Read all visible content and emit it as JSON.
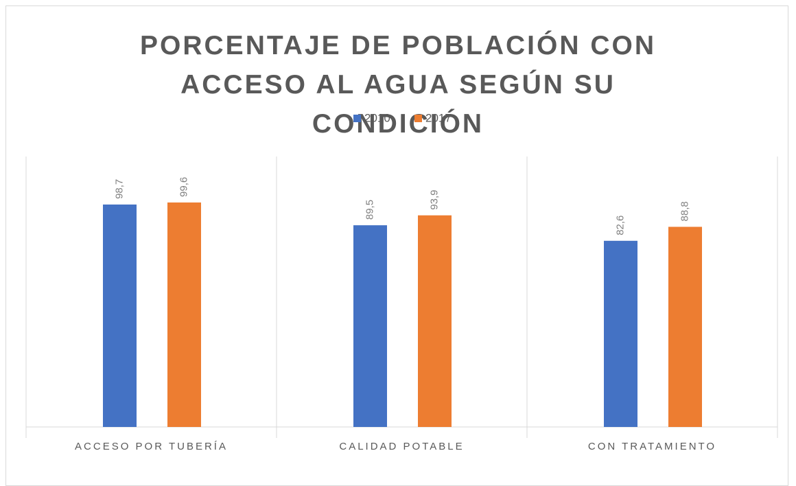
{
  "chart_data": {
    "type": "bar",
    "title": "PORCENTAJE DE POBLACIÓN CON ACCESO AL AGUA SEGÚN SU CONDICIÓN",
    "categories": [
      "ACCESO POR TUBERÍA",
      "CALIDAD POTABLE",
      "CON TRATAMIENTO"
    ],
    "series": [
      {
        "name": "2010",
        "color": "#4472c4",
        "values": [
          98.7,
          89.5,
          82.6
        ],
        "value_labels": [
          "98,7",
          "89,5",
          "82,6"
        ]
      },
      {
        "name": "2017",
        "color": "#ed7d31",
        "values": [
          99.6,
          93.9,
          88.8
        ],
        "value_labels": [
          "99,6",
          "93,9",
          "88,8"
        ]
      }
    ],
    "ylim": [
      0,
      120
    ],
    "legend": "top"
  }
}
